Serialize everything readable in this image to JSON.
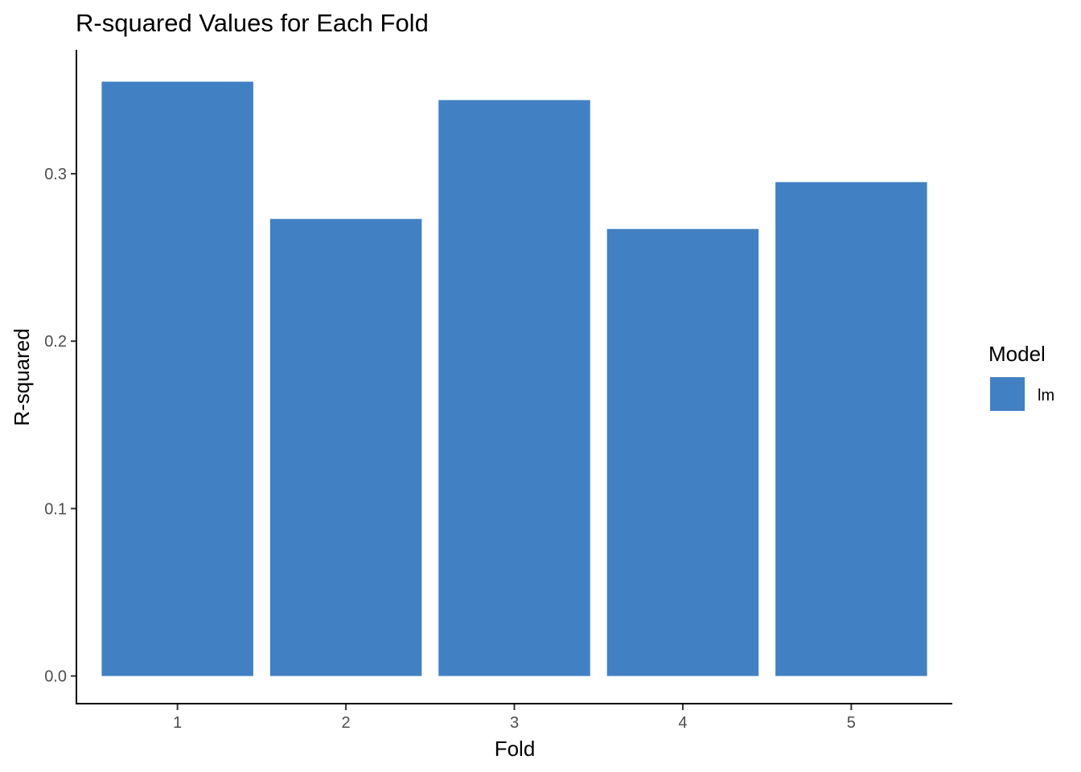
{
  "chart_data": {
    "type": "bar",
    "title": "R-squared Values for Each Fold",
    "xlabel": "Fold",
    "ylabel": "R-squared",
    "categories": [
      "1",
      "2",
      "3",
      "4",
      "5"
    ],
    "series": [
      {
        "name": "lm",
        "values": [
          0.355,
          0.273,
          0.344,
          0.267,
          0.295
        ],
        "color": "#4180C2"
      }
    ],
    "ylim": [
      -0.017,
      0.374
    ],
    "yticks": [
      0.0,
      0.1,
      0.2,
      0.3
    ],
    "ytick_labels": [
      "0.0",
      "0.1",
      "0.2",
      "0.3"
    ],
    "grid": false,
    "legend": {
      "title": "Model",
      "position": "right"
    }
  }
}
